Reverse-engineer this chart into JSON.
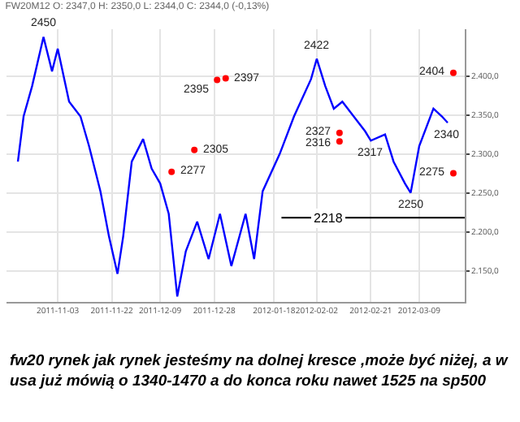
{
  "chart_data": {
    "type": "line",
    "title": "FW20M12 O: 2347,0 H: 2350,0 L: 2344,0 C: 2344,0 (-0,13%)",
    "x": [
      "2011-10-20",
      "2011-10-22",
      "2011-10-25",
      "2011-10-29",
      "2011-11-01",
      "2011-11-03",
      "2011-11-07",
      "2011-11-11",
      "2011-11-14",
      "2011-11-18",
      "2011-11-21",
      "2011-11-24",
      "2011-11-26",
      "2011-11-29",
      "2011-12-03",
      "2011-12-06",
      "2011-12-09",
      "2011-12-12",
      "2011-12-15",
      "2011-12-18",
      "2011-12-22",
      "2011-12-26",
      "2011-12-30",
      "2012-01-03",
      "2012-01-08",
      "2012-01-11",
      "2012-01-14",
      "2012-01-20",
      "2012-01-25",
      "2012-01-31",
      "2012-02-02",
      "2012-02-05",
      "2012-02-08",
      "2012-02-11",
      "2012-02-15",
      "2012-02-19",
      "2012-02-21",
      "2012-02-26",
      "2012-02-29",
      "2012-03-04",
      "2012-03-06",
      "2012-03-09",
      "2012-03-14",
      "2012-03-17",
      "2012-03-19"
    ],
    "series": [
      {
        "color": "#0000ff",
        "values": [
          2290,
          2348,
          2387,
          2450,
          2406,
          2435,
          2367,
          2348,
          2310,
          2252,
          2194,
          2146,
          2194,
          2290,
          2319,
          2281,
          2262,
          2223,
          2117,
          2175,
          2213,
          2165,
          2223,
          2156,
          2223,
          2165,
          2252,
          2300,
          2348,
          2396,
          2422,
          2387,
          2358,
          2367,
          2348,
          2329,
          2317,
          2325,
          2290,
          2262,
          2250,
          2310,
          2358,
          2348,
          2340
        ]
      },
      {
        "type": "scatter",
        "color": "#ff0000",
        "x": [
          "2012-01-01",
          "2011-12-29",
          "2011-12-21",
          "2011-12-13",
          "2012-02-10",
          "2012-02-10",
          "2012-03-21",
          "2012-03-21"
        ],
        "values": [
          2397,
          2395,
          2305,
          2277,
          2327,
          2316,
          2404,
          2275
        ]
      }
    ],
    "xlim": [
      "2011-10-16",
      "2012-03-25"
    ],
    "xticks": [
      {
        "value": "2011-11-03",
        "label": "2011-11-03"
      },
      {
        "value": "2011-11-22",
        "label": "2011-11-22"
      },
      {
        "value": "2011-12-09",
        "label": "2011-12-09"
      },
      {
        "value": "2011-12-28",
        "label": "2011-12-28"
      },
      {
        "value": "2012-01-18",
        "label": "2012-01-18"
      },
      {
        "value": "2012-02-02",
        "label": "2012-02-02"
      },
      {
        "value": "2012-02-21",
        "label": "2012-02-21"
      },
      {
        "value": "2012-03-09",
        "label": "2012-03-09"
      }
    ],
    "ylim": [
      2110,
      2460
    ],
    "yticks": [
      {
        "value": 2150,
        "label": "2.150,0"
      },
      {
        "value": 2200,
        "label": "2.200,0"
      },
      {
        "value": 2250,
        "label": "2.250,0"
      },
      {
        "value": 2300,
        "label": "2.300,0"
      },
      {
        "value": 2350,
        "label": "2.350,0"
      },
      {
        "value": 2400,
        "label": "2.400,0"
      }
    ],
    "ref_lines": [
      {
        "axis": "y",
        "value": 2218,
        "label": "2218",
        "color": "#000000"
      }
    ],
    "annotations": [
      {
        "text": "2450",
        "x": "2011-10-29",
        "y": 2450
      },
      {
        "text": "2422",
        "x": "2012-02-02",
        "y": 2422
      },
      {
        "text": "2404",
        "x": "2012-03-21",
        "y": 2404
      },
      {
        "text": "2340",
        "x": "2012-03-19",
        "y": 2340
      },
      {
        "text": "2397",
        "x": "2012-01-01",
        "y": 2397
      },
      {
        "text": "2395",
        "x": "2011-12-29",
        "y": 2395
      },
      {
        "text": "2305",
        "x": "2011-12-21",
        "y": 2305
      },
      {
        "text": "2277",
        "x": "2011-12-13",
        "y": 2277
      },
      {
        "text": "2327",
        "x": "2012-02-10",
        "y": 2327
      },
      {
        "text": "2316",
        "x": "2012-02-10",
        "y": 2316
      },
      {
        "text": "2317",
        "x": "2012-02-21",
        "y": 2317
      },
      {
        "text": "2250",
        "x": "2012-03-06",
        "y": 2250
      },
      {
        "text": "2275",
        "x": "2012-03-21",
        "y": 2275
      },
      "fw20 rynek jak rynek jesteśmy na dolnej kresce ,może być niżej, a w usa już mówią o 1340-1470 a do konca roku nawet 1525 na sp500"
    ],
    "grid": true,
    "line_style": "solid"
  }
}
